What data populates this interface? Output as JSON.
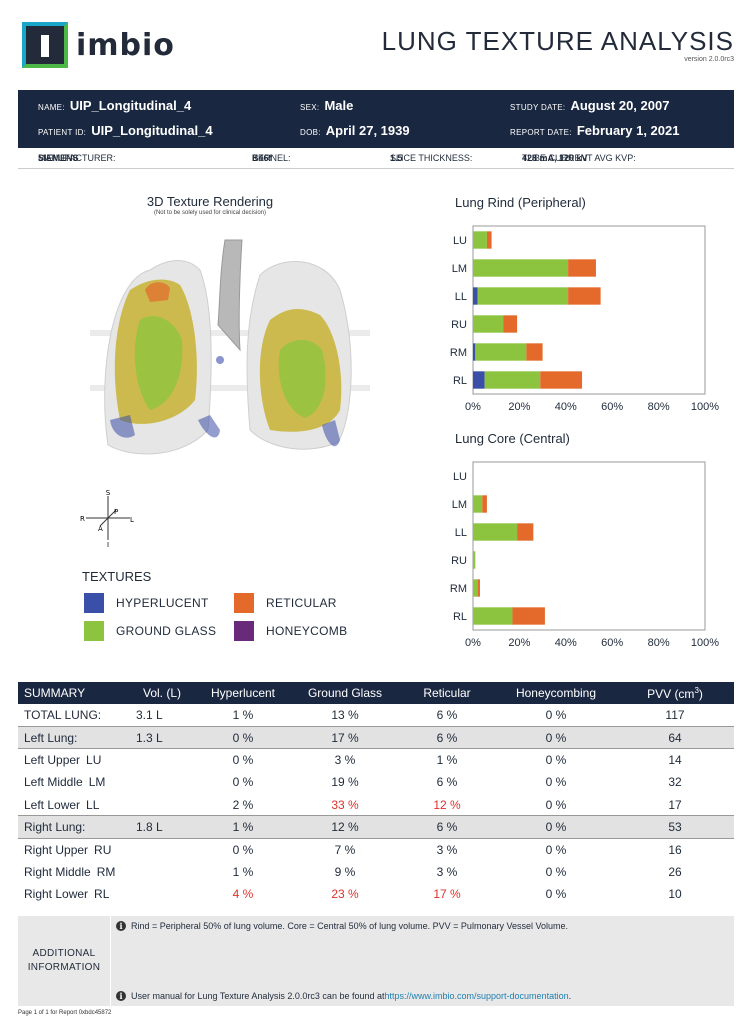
{
  "brand": {
    "name": "imbio"
  },
  "report": {
    "title": "LUNG TEXTURE ANALYSIS",
    "version": "version 2.0.0rc3"
  },
  "patient": {
    "name_label": "NAME:",
    "name": "UIP_Longitudinal_4",
    "id_label": "PATIENT ID:",
    "id": "UIP_Longitudinal_4",
    "sex_label": "SEX:",
    "sex": "Male",
    "dob_label": "DOB:",
    "dob": "April 27, 1939",
    "study_date_label": "STUDY DATE:",
    "study_date": "August 20, 2007",
    "report_date_label": "REPORT DATE:",
    "report_date": "February 1, 2021"
  },
  "scan": {
    "manufacturer_label": "MANUFACTURER:",
    "manufacturer": "SIEMENS",
    "kernel_label": "KERNEL:",
    "kernel": "B46f",
    "slice_label": "SLICE THICKNESS:",
    "slice": "1.5",
    "tube_label": "TUBE CURRENT AVG KVP:",
    "tube": "428 mA, 120 kV"
  },
  "rendering": {
    "title": "3D Texture Rendering",
    "subtitle": "(Not to be solely used for clinical decision)"
  },
  "orientation": {
    "s": "S",
    "i": "I",
    "r": "R",
    "l": "L",
    "a": "A",
    "p": "P"
  },
  "textures": {
    "title": "TEXTURES",
    "items": [
      {
        "label": "HYPERLUCENT",
        "color": "#3a4fa8"
      },
      {
        "label": "RETICULAR",
        "color": "#e36a2b"
      },
      {
        "label": "GROUND GLASS",
        "color": "#8cc43f"
      },
      {
        "label": "HONEYCOMB",
        "color": "#6a2a7a"
      }
    ]
  },
  "colors": {
    "hyperlucent": "#3a4fa8",
    "ground_glass": "#8cc43f",
    "reticular": "#e36a2b",
    "honeycomb": "#6a2a7a",
    "navy": "#1a2740"
  },
  "chart_data": [
    {
      "type": "bar",
      "orientation": "horizontal-stacked",
      "title": "Lung Rind (Peripheral)",
      "categories": [
        "LU",
        "LM",
        "LL",
        "RU",
        "RM",
        "RL"
      ],
      "series": [
        {
          "name": "HYPERLUCENT",
          "values": [
            0,
            0,
            2,
            0,
            1,
            5
          ]
        },
        {
          "name": "GROUND GLASS",
          "values": [
            6,
            41,
            39,
            13,
            22,
            24
          ]
        },
        {
          "name": "RETICULAR",
          "values": [
            2,
            12,
            14,
            6,
            7,
            18
          ]
        }
      ],
      "xlim": [
        0,
        100
      ],
      "xticks": [
        "0%",
        "20%",
        "40%",
        "60%",
        "80%",
        "100%"
      ]
    },
    {
      "type": "bar",
      "orientation": "horizontal-stacked",
      "title": "Lung Core (Central)",
      "categories": [
        "LU",
        "LM",
        "LL",
        "RU",
        "RM",
        "RL"
      ],
      "series": [
        {
          "name": "HYPERLUCENT",
          "values": [
            0,
            0,
            0,
            0,
            0,
            0
          ]
        },
        {
          "name": "GROUND GLASS",
          "values": [
            0,
            4,
            19,
            1,
            2,
            17
          ]
        },
        {
          "name": "RETICULAR",
          "values": [
            0,
            2,
            7,
            0,
            1,
            14
          ]
        }
      ],
      "xlim": [
        0,
        100
      ],
      "xticks": [
        "0%",
        "20%",
        "40%",
        "60%",
        "80%",
        "100%"
      ]
    }
  ],
  "summary": {
    "headers": [
      "SUMMARY",
      "Vol. (L)",
      "Hyperlucent",
      "Ground Glass",
      "Reticular",
      "Honeycombing",
      "PVV (cm"
    ],
    "pvv_sup": "3",
    "pvv_close": ")",
    "rows": [
      {
        "label": "TOTAL LUNG:",
        "code": "",
        "vol": "3.1 L",
        "hyper": "1 %",
        "gg": "13 %",
        "ret": "6 %",
        "honey": "0 %",
        "pvv": "117",
        "group": false,
        "gg_red": false,
        "ret_red": false,
        "hyper_red": false
      },
      {
        "label": "Left Lung:",
        "code": "",
        "vol": "1.3 L",
        "hyper": "0 %",
        "gg": "17 %",
        "ret": "6 %",
        "honey": "0 %",
        "pvv": "64",
        "group": true,
        "gg_red": false,
        "ret_red": false,
        "hyper_red": false
      },
      {
        "label": "Left Upper",
        "code": "LU",
        "vol": "",
        "hyper": "0 %",
        "gg": "3 %",
        "ret": "1 %",
        "honey": "0 %",
        "pvv": "14",
        "group": false,
        "gg_red": false,
        "ret_red": false,
        "hyper_red": false
      },
      {
        "label": "Left Middle",
        "code": "LM",
        "vol": "",
        "hyper": "0 %",
        "gg": "19 %",
        "ret": "6 %",
        "honey": "0 %",
        "pvv": "32",
        "group": false,
        "gg_red": false,
        "ret_red": false,
        "hyper_red": false
      },
      {
        "label": "Left Lower",
        "code": "LL",
        "vol": "",
        "hyper": "2 %",
        "gg": "33 %",
        "ret": "12 %",
        "honey": "0 %",
        "pvv": "17",
        "group": false,
        "gg_red": true,
        "ret_red": true,
        "hyper_red": false
      },
      {
        "label": "Right Lung:",
        "code": "",
        "vol": "1.8 L",
        "hyper": "1 %",
        "gg": "12 %",
        "ret": "6 %",
        "honey": "0 %",
        "pvv": "53",
        "group": true,
        "gg_red": false,
        "ret_red": false,
        "hyper_red": false
      },
      {
        "label": "Right Upper",
        "code": "RU",
        "vol": "",
        "hyper": "0 %",
        "gg": "7 %",
        "ret": "3 %",
        "honey": "0 %",
        "pvv": "16",
        "group": false,
        "gg_red": false,
        "ret_red": false,
        "hyper_red": false
      },
      {
        "label": "Right Middle",
        "code": "RM",
        "vol": "",
        "hyper": "1 %",
        "gg": "9 %",
        "ret": "3 %",
        "honey": "0 %",
        "pvv": "26",
        "group": false,
        "gg_red": false,
        "ret_red": false,
        "hyper_red": false
      },
      {
        "label": "Right Lower",
        "code": "RL",
        "vol": "",
        "hyper": "4 %",
        "gg": "23 %",
        "ret": "17 %",
        "honey": "0 %",
        "pvv": "10",
        "group": false,
        "gg_red": true,
        "ret_red": true,
        "hyper_red": true
      }
    ]
  },
  "additional": {
    "label_line1": "ADDITIONAL",
    "label_line2": "INFORMATION",
    "note1": "Rind = Peripheral 50% of lung volume. Core = Central 50% of lung volume. PVV = Pulmonary Vessel Volume.",
    "note2_prefix": "User manual for Lung Texture Analysis 2.0.0rc3 can be found at ",
    "note2_link": "https://www.imbio.com/support-documentation",
    "note2_suffix": "."
  },
  "footer": "Page 1 of 1 for Report 0xbdc45872"
}
